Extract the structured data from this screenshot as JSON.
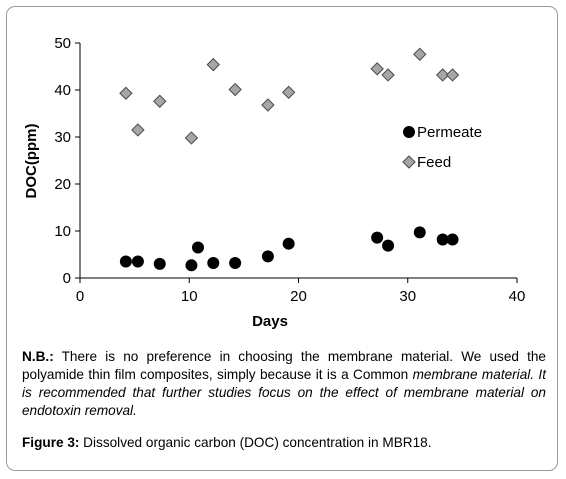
{
  "chart_data": {
    "type": "scatter",
    "xlabel": "Days",
    "ylabel": "DOC(ppm)",
    "xlim": [
      0,
      40
    ],
    "ylim": [
      0,
      50
    ],
    "xticks": [
      0,
      10,
      20,
      30,
      40
    ],
    "yticks": [
      0,
      10,
      20,
      30,
      40,
      50
    ],
    "grid": false,
    "legend_position": "right",
    "series": [
      {
        "name": "Permeate",
        "marker": "circle",
        "color": "#000000",
        "x": [
          4.2,
          5.3,
          7.3,
          10.2,
          10.8,
          12.2,
          14.2,
          17.2,
          19.1,
          27.2,
          28.2,
          31.1,
          33.2,
          34.1
        ],
        "y": [
          3.5,
          3.5,
          3.0,
          2.7,
          6.5,
          3.2,
          3.2,
          4.6,
          7.3,
          8.6,
          6.9,
          9.7,
          8.2,
          8.2
        ]
      },
      {
        "name": "Feed",
        "marker": "diamond",
        "color": "#a6a6a6",
        "x": [
          4.2,
          5.3,
          7.3,
          10.2,
          12.2,
          14.2,
          17.2,
          19.1,
          27.2,
          28.2,
          31.1,
          33.2,
          34.1
        ],
        "y": [
          39.3,
          31.5,
          37.6,
          29.8,
          45.4,
          40.1,
          36.8,
          39.5,
          44.5,
          43.2,
          47.6,
          43.2,
          43.2
        ]
      }
    ]
  },
  "note": {
    "label": "N.B.:",
    "text_normal": " There is no preference in choosing the membrane material. We used the polyamide thin film composites, simply because it is a Common ",
    "text_italic": "membrane material. It is recommended that further studies focus on the effect of membrane material on endotoxin removal."
  },
  "caption": {
    "label": "Figure 3:",
    "text": " Dissolved organic carbon (DOC) concentration in MBR18."
  }
}
